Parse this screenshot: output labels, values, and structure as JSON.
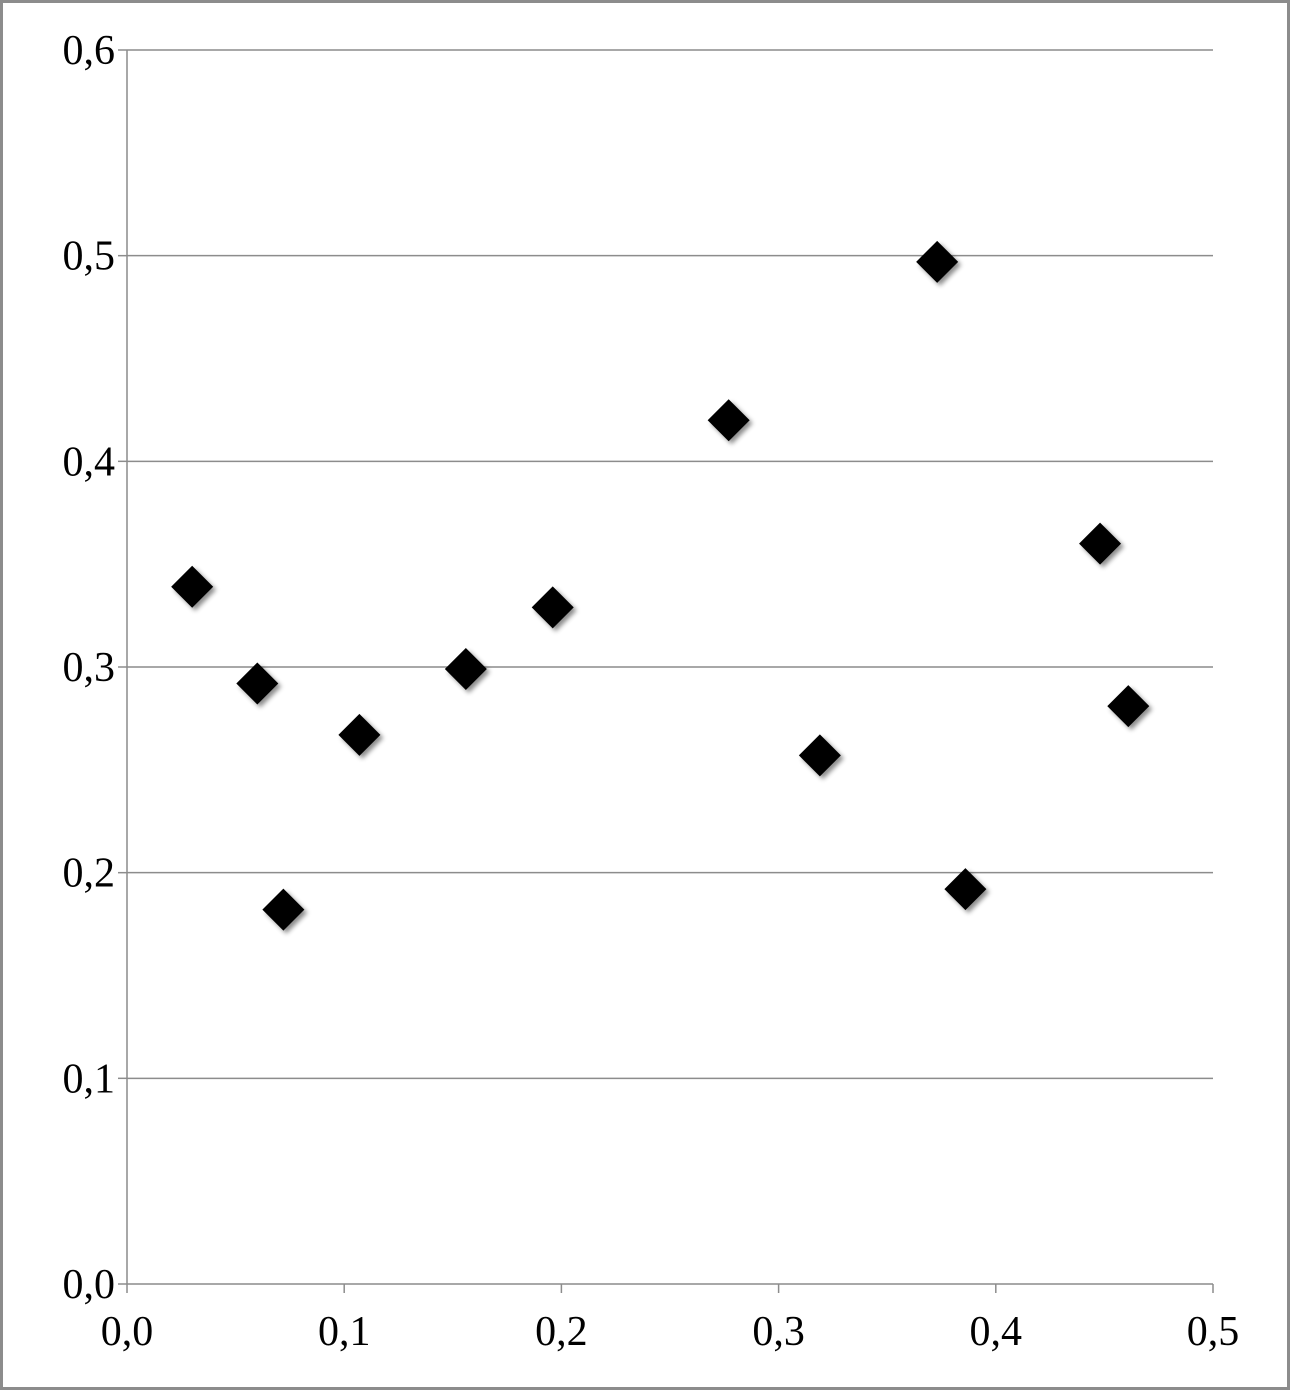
{
  "chart_data": {
    "type": "scatter",
    "title": "",
    "xlabel": "",
    "ylabel": "",
    "xlim": [
      0.0,
      0.5
    ],
    "ylim": [
      0.0,
      0.6
    ],
    "x_ticks": [
      "0,0",
      "0,1",
      "0,2",
      "0,3",
      "0,4",
      "0,5"
    ],
    "y_ticks": [
      "0,0",
      "0,1",
      "0,2",
      "0,3",
      "0,4",
      "0,5",
      "0,6"
    ],
    "grid": "horizontal",
    "marker": "diamond",
    "marker_color": "#000000",
    "points": [
      {
        "x": 0.03,
        "y": 0.339
      },
      {
        "x": 0.06,
        "y": 0.292
      },
      {
        "x": 0.072,
        "y": 0.182
      },
      {
        "x": 0.107,
        "y": 0.267
      },
      {
        "x": 0.156,
        "y": 0.299
      },
      {
        "x": 0.196,
        "y": 0.329
      },
      {
        "x": 0.277,
        "y": 0.42
      },
      {
        "x": 0.319,
        "y": 0.257
      },
      {
        "x": 0.373,
        "y": 0.497
      },
      {
        "x": 0.386,
        "y": 0.192
      },
      {
        "x": 0.448,
        "y": 0.36
      },
      {
        "x": 0.461,
        "y": 0.281
      }
    ]
  }
}
